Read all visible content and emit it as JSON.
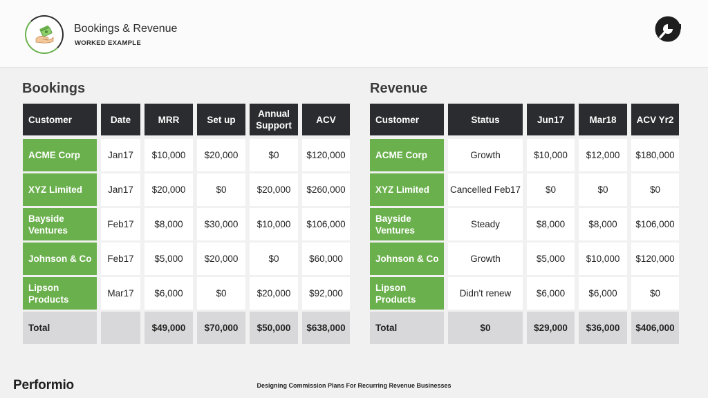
{
  "header": {
    "title": "Bookings & Revenue",
    "subtitle": "WORKED EXAMPLE",
    "icon": "money-hand-icon",
    "brand_icon": "performio-mark-icon"
  },
  "bookings": {
    "title": "Bookings",
    "columns": [
      "Customer",
      "Date",
      "MRR",
      "Set up",
      "Annual Support",
      "ACV"
    ],
    "rows": [
      [
        "ACME Corp",
        "Jan17",
        "$10,000",
        "$20,000",
        "$0",
        "$120,000"
      ],
      [
        "XYZ Limited",
        "Jan17",
        "$20,000",
        "$0",
        "$20,000",
        "$260,000"
      ],
      [
        "Bayside Ventures",
        "Feb17",
        "$8,000",
        "$30,000",
        "$10,000",
        "$106,000"
      ],
      [
        "Johnson & Co",
        "Feb17",
        "$5,000",
        "$20,000",
        "$0",
        "$60,000"
      ],
      [
        "Lipson Products",
        "Mar17",
        "$6,000",
        "$0",
        "$20,000",
        "$92,000"
      ]
    ],
    "total": [
      "Total",
      "",
      "$49,000",
      "$70,000",
      "$50,000",
      "$638,000"
    ]
  },
  "revenue": {
    "title": "Revenue",
    "columns": [
      "Customer",
      "Status",
      "Jun17",
      "Mar18",
      "ACV Yr2"
    ],
    "rows": [
      [
        "ACME Corp",
        "Growth",
        "$10,000",
        "$12,000",
        "$180,000"
      ],
      [
        "XYZ Limited",
        "Cancelled Feb17",
        "$0",
        "$0",
        "$0"
      ],
      [
        "Bayside Ventures",
        "Steady",
        "$8,000",
        "$8,000",
        "$106,000"
      ],
      [
        "Johnson & Co",
        "Growth",
        "$5,000",
        "$10,000",
        "$120,000"
      ],
      [
        "Lipson Products",
        "Didn't renew",
        "$6,000",
        "$6,000",
        "$0"
      ]
    ],
    "total": [
      "Total",
      "$0",
      "$29,000",
      "$36,000",
      "$406,000"
    ]
  },
  "footer": {
    "logo": "Performio",
    "text": "Designing Commission Plans For Recurring Revenue Businesses"
  },
  "colors": {
    "header_cell": "#2a2c2f",
    "customer_cell": "#6ab04c",
    "total_cell": "#d8d8da",
    "background": "#f1f1f1"
  }
}
